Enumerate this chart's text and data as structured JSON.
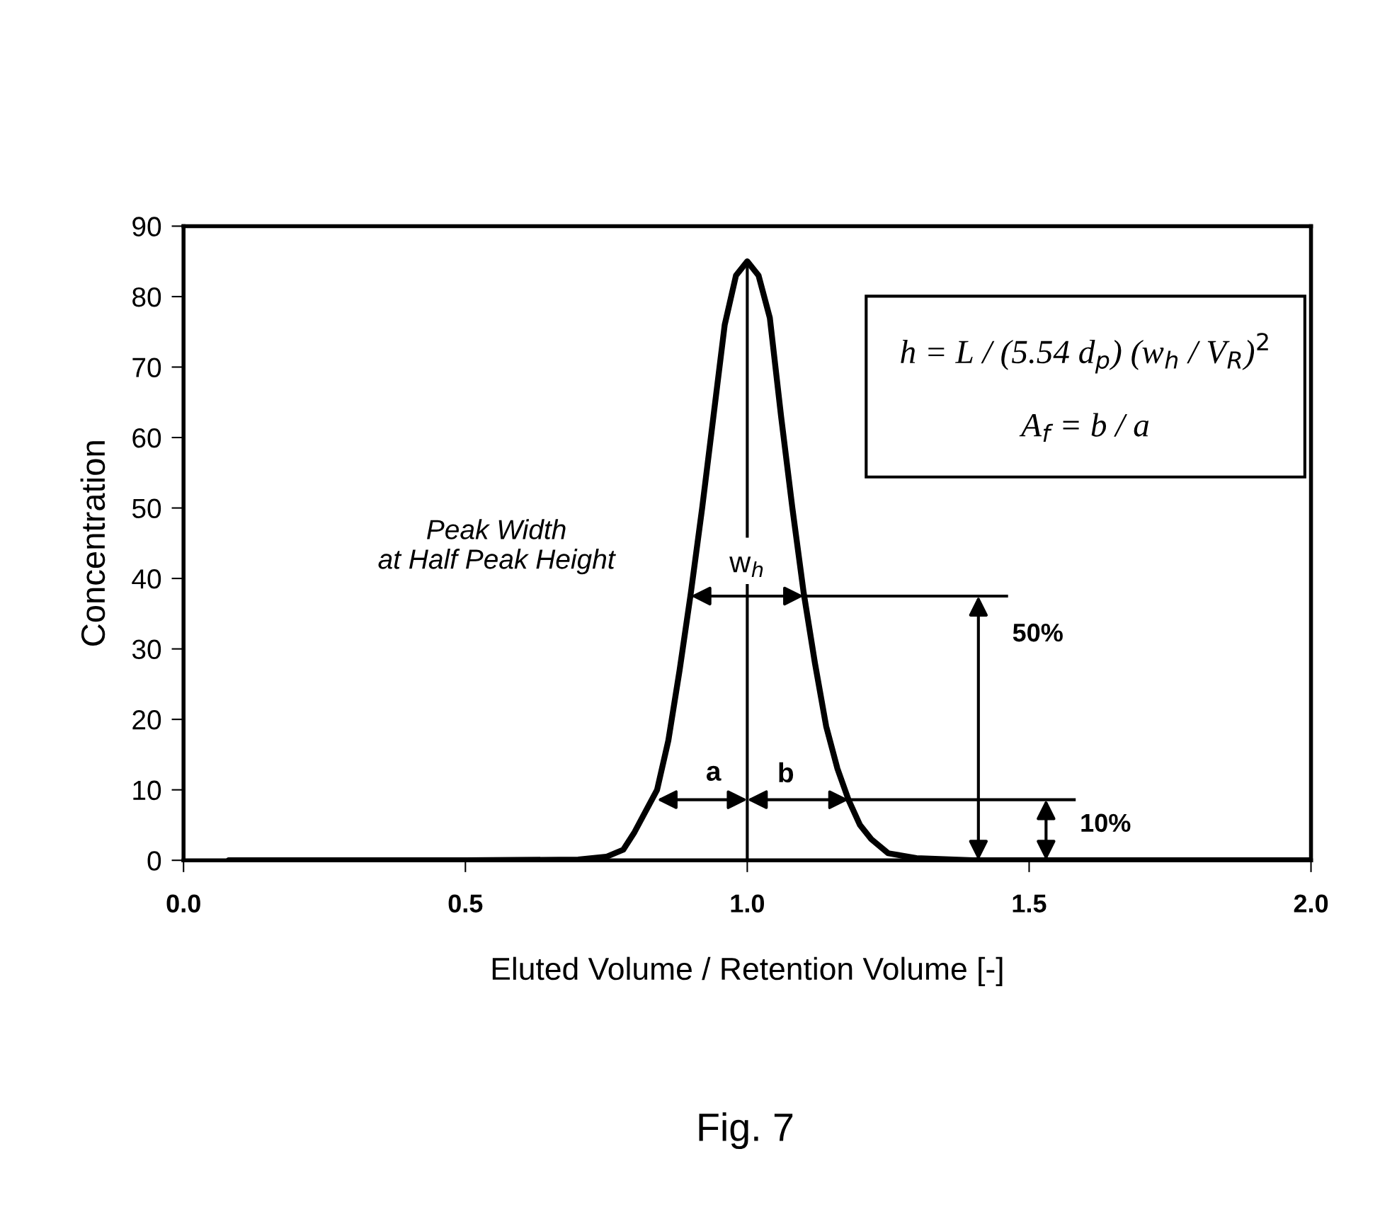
{
  "chart_data": {
    "type": "line",
    "xlabel": "Eluted Volume / Retention Volume [-]",
    "ylabel": "Concentration",
    "xlim": [
      0.0,
      2.0
    ],
    "xticks": [
      {
        "value": 0,
        "label": "0.0"
      },
      0.5,
      {
        "value": 1,
        "label": "1.0"
      },
      1.5,
      {
        "value": 2,
        "label": "2.0"
      }
    ],
    "ylim": [
      0,
      90
    ],
    "yticks": [
      0,
      10,
      20,
      30,
      40,
      50,
      60,
      70,
      80,
      90
    ],
    "grid": false,
    "legend": false,
    "series": [
      {
        "color": "#000000",
        "x": [
          0.08,
          0.5,
          0.7,
          0.75,
          0.78,
          0.8,
          0.82,
          0.84,
          0.86,
          0.88,
          0.9,
          0.92,
          0.94,
          0.96,
          0.98,
          1.0,
          1.02,
          1.04,
          1.06,
          1.08,
          1.1,
          1.12,
          1.14,
          1.16,
          1.18,
          1.2,
          1.22,
          1.25,
          1.3,
          1.4,
          2.0
        ],
        "values": [
          0,
          0,
          0.1,
          0.5,
          1.5,
          4,
          7,
          10,
          17,
          27,
          38,
          50,
          63,
          76,
          83,
          85,
          83,
          77,
          63,
          50,
          38,
          28,
          19,
          13,
          8.5,
          5,
          3,
          1,
          0.3,
          0,
          0
        ]
      },
      {
        "color": "#000000",
        "x": [
          1.0,
          1.0
        ],
        "values": [
          46,
          85
        ]
      },
      {
        "color": "#000000",
        "x": [
          1.0,
          1.0
        ],
        "values": [
          0,
          39
        ]
      },
      {
        "color": "#000000",
        "x": [
          1.1,
          1.46
        ],
        "values": [
          37.5,
          37.5
        ]
      },
      {
        "color": "#000000",
        "x": [
          1.18,
          1.58
        ],
        "values": [
          8.6,
          8.6
        ]
      }
    ],
    "annotations": [
      "Peak Width\nat Half Peak Height",
      {
        "text": "w$_{h}$",
        "x": 1.0,
        "y": 37.5
      },
      "a",
      {
        "text": "b",
        "x": 1.18,
        "y": 8.6
      },
      "50%",
      "10%",
      "h = L / (5.54 d$_{p}$) (w$_{h}$ / V$_{R}$)$^{2}$\n\nA$_{f}$ = b / a",
      "Fig. 7"
    ]
  }
}
